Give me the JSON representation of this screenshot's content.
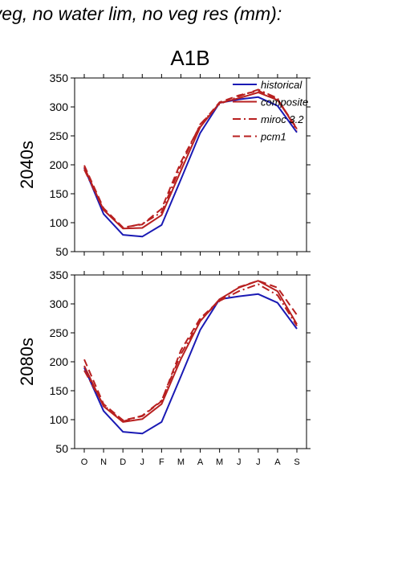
{
  "header": {
    "title": "f veg, no water lim, no veg res (mm):"
  },
  "colors": {
    "historical": "#1a1ab4",
    "projection": "#b82020"
  },
  "legend": [
    {
      "name": "historical",
      "style": "solid",
      "color": "#1a1ab4"
    },
    {
      "name": "composite",
      "style": "solid",
      "color": "#b82020"
    },
    {
      "name": "miroc_3.2",
      "style": "dashdot",
      "color": "#b82020"
    },
    {
      "name": "pcm1",
      "style": "dashed",
      "color": "#b82020"
    }
  ],
  "chart_data": [
    {
      "type": "line",
      "title": "A1B",
      "panel_label": "2040s",
      "categories": [
        "O",
        "N",
        "D",
        "J",
        "F",
        "M",
        "A",
        "M",
        "J",
        "J",
        "A",
        "S"
      ],
      "ylim": [
        50,
        350
      ],
      "yticks": [
        50,
        100,
        150,
        200,
        250,
        300,
        350
      ],
      "series": [
        {
          "name": "historical",
          "values": [
            195,
            115,
            79,
            76,
            96,
            175,
            255,
            307,
            313,
            317,
            302,
            256
          ]
        },
        {
          "name": "composite",
          "values": [
            196,
            122,
            90,
            91,
            113,
            190,
            265,
            307,
            315,
            325,
            312,
            262
          ]
        },
        {
          "name": "miroc_3.2",
          "values": [
            192,
            122,
            91,
            98,
            118,
            199,
            270,
            305,
            318,
            330,
            315,
            259
          ]
        },
        {
          "name": "pcm1",
          "values": [
            199,
            125,
            92,
            97,
            124,
            205,
            268,
            308,
            320,
            328,
            313,
            263
          ]
        }
      ]
    },
    {
      "type": "line",
      "title": "",
      "panel_label": "2080s",
      "categories": [
        "O",
        "N",
        "D",
        "J",
        "F",
        "M",
        "A",
        "M",
        "J",
        "J",
        "A",
        "S"
      ],
      "ylim": [
        50,
        350
      ],
      "yticks": [
        50,
        100,
        150,
        200,
        250,
        300,
        350
      ],
      "series": [
        {
          "name": "historical",
          "values": [
            190,
            115,
            79,
            76,
            96,
            175,
            255,
            308,
            313,
            317,
            302,
            257
          ]
        },
        {
          "name": "composite",
          "values": [
            193,
            123,
            96,
            101,
            127,
            205,
            270,
            308,
            328,
            340,
            322,
            265
          ]
        },
        {
          "name": "miroc_3.2",
          "values": [
            185,
            125,
            97,
            107,
            133,
            213,
            272,
            305,
            322,
            334,
            315,
            262
          ]
        },
        {
          "name": "pcm1",
          "values": [
            204,
            127,
            99,
            106,
            132,
            220,
            275,
            306,
            329,
            340,
            328,
            281
          ]
        }
      ]
    }
  ]
}
